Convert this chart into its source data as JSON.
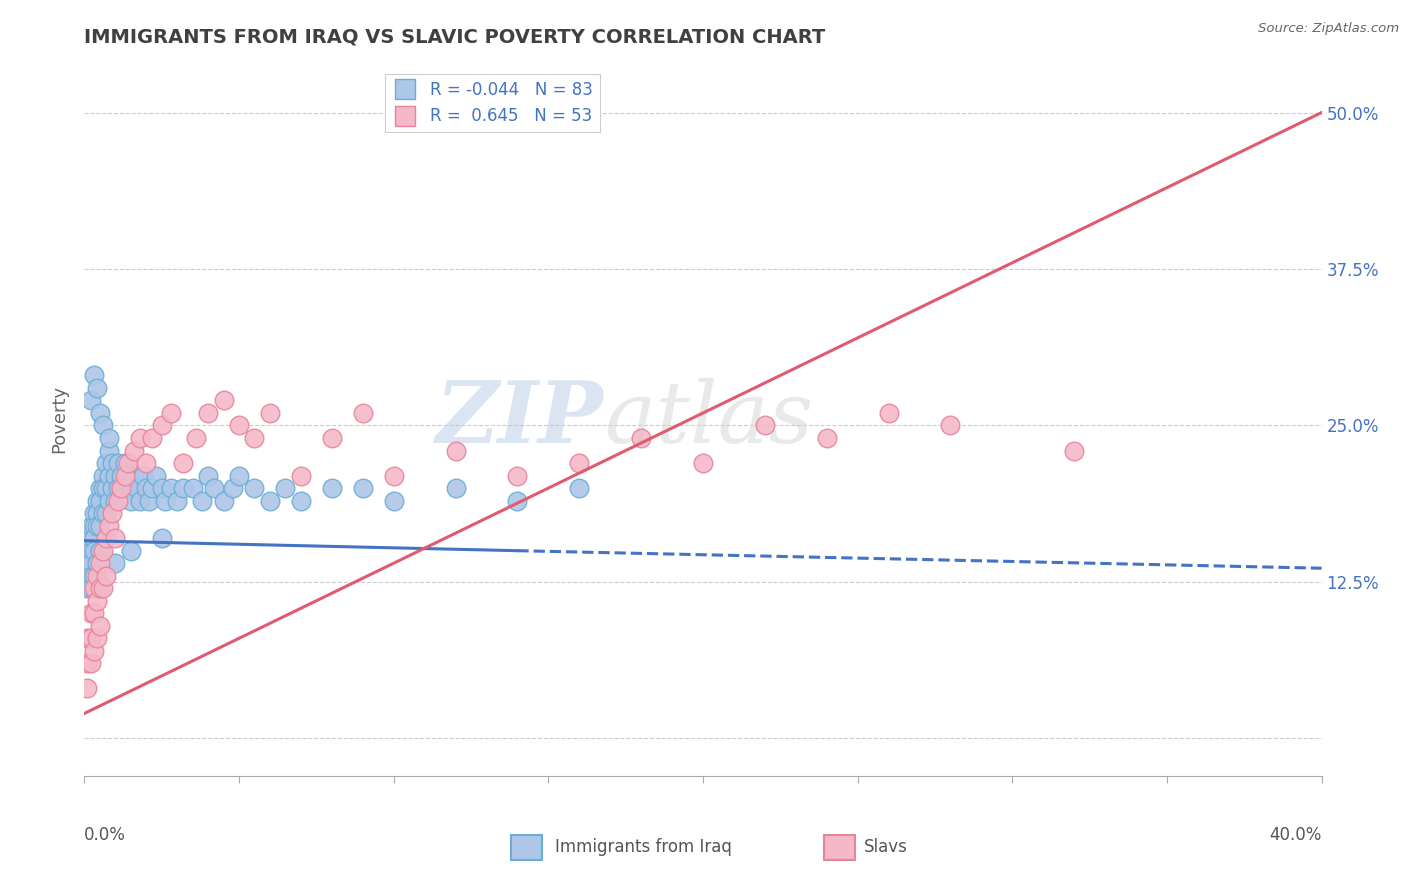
{
  "title": "IMMIGRANTS FROM IRAQ VS SLAVIC POVERTY CORRELATION CHART",
  "source": "Source: ZipAtlas.com",
  "ylabel": "Poverty",
  "ytick_values": [
    0.0,
    0.125,
    0.25,
    0.375,
    0.5
  ],
  "xlim": [
    0.0,
    0.4
  ],
  "ylim": [
    -0.03,
    0.54
  ],
  "legend_entries": [
    {
      "label": "Immigrants from Iraq",
      "color_fill": "#aec6e8",
      "color_edge": "#6aaed6",
      "R": -0.044,
      "N": 83
    },
    {
      "label": "Slavs",
      "color_fill": "#f4b8c8",
      "color_edge": "#e8849a",
      "R": 0.645,
      "N": 53
    }
  ],
  "iraq_line_color": "#4472c4",
  "slavic_line_color": "#e05a70",
  "watermark_zip": "ZIP",
  "watermark_atlas": "atlas",
  "background_color": "#ffffff",
  "grid_color": "#cccccc",
  "title_color": "#404040",
  "iraq_line_solid": {
    "x0": 0.0,
    "x1": 0.14,
    "y0": 0.158,
    "y1": 0.15
  },
  "iraq_line_dashed": {
    "x0": 0.14,
    "x1": 0.4,
    "y0": 0.15,
    "y1": 0.136
  },
  "slavic_line": {
    "x0": 0.0,
    "x1": 0.4,
    "y0": 0.02,
    "y1": 0.5
  },
  "iraq_scatter_x": [
    0.001,
    0.001,
    0.001,
    0.001,
    0.002,
    0.002,
    0.002,
    0.002,
    0.002,
    0.003,
    0.003,
    0.003,
    0.003,
    0.003,
    0.004,
    0.004,
    0.004,
    0.004,
    0.005,
    0.005,
    0.005,
    0.005,
    0.006,
    0.006,
    0.006,
    0.007,
    0.007,
    0.007,
    0.008,
    0.008,
    0.008,
    0.009,
    0.009,
    0.01,
    0.01,
    0.011,
    0.011,
    0.012,
    0.012,
    0.013,
    0.013,
    0.014,
    0.015,
    0.015,
    0.016,
    0.017,
    0.018,
    0.019,
    0.02,
    0.021,
    0.022,
    0.023,
    0.025,
    0.026,
    0.028,
    0.03,
    0.032,
    0.035,
    0.038,
    0.04,
    0.042,
    0.045,
    0.048,
    0.05,
    0.055,
    0.06,
    0.065,
    0.07,
    0.08,
    0.09,
    0.1,
    0.12,
    0.14,
    0.16,
    0.002,
    0.003,
    0.004,
    0.005,
    0.006,
    0.008,
    0.01,
    0.015,
    0.025
  ],
  "iraq_scatter_y": [
    0.14,
    0.16,
    0.13,
    0.12,
    0.17,
    0.15,
    0.14,
    0.13,
    0.12,
    0.18,
    0.17,
    0.16,
    0.15,
    0.13,
    0.19,
    0.18,
    0.17,
    0.14,
    0.2,
    0.19,
    0.17,
    0.15,
    0.21,
    0.2,
    0.18,
    0.22,
    0.2,
    0.18,
    0.23,
    0.21,
    0.19,
    0.22,
    0.2,
    0.21,
    0.19,
    0.22,
    0.2,
    0.21,
    0.2,
    0.22,
    0.2,
    0.21,
    0.2,
    0.19,
    0.21,
    0.2,
    0.19,
    0.21,
    0.2,
    0.19,
    0.2,
    0.21,
    0.2,
    0.19,
    0.2,
    0.19,
    0.2,
    0.2,
    0.19,
    0.21,
    0.2,
    0.19,
    0.2,
    0.21,
    0.2,
    0.19,
    0.2,
    0.19,
    0.2,
    0.2,
    0.19,
    0.2,
    0.19,
    0.2,
    0.27,
    0.29,
    0.28,
    0.26,
    0.25,
    0.24,
    0.14,
    0.15,
    0.16
  ],
  "slavic_scatter_x": [
    0.001,
    0.001,
    0.001,
    0.002,
    0.002,
    0.002,
    0.003,
    0.003,
    0.003,
    0.004,
    0.004,
    0.004,
    0.005,
    0.005,
    0.005,
    0.006,
    0.006,
    0.007,
    0.007,
    0.008,
    0.009,
    0.01,
    0.011,
    0.012,
    0.013,
    0.014,
    0.016,
    0.018,
    0.02,
    0.022,
    0.025,
    0.028,
    0.032,
    0.036,
    0.04,
    0.045,
    0.05,
    0.055,
    0.06,
    0.07,
    0.08,
    0.09,
    0.1,
    0.12,
    0.14,
    0.16,
    0.18,
    0.2,
    0.22,
    0.24,
    0.26,
    0.28,
    0.32
  ],
  "slavic_scatter_y": [
    0.08,
    0.06,
    0.04,
    0.1,
    0.08,
    0.06,
    0.12,
    0.1,
    0.07,
    0.13,
    0.11,
    0.08,
    0.14,
    0.12,
    0.09,
    0.15,
    0.12,
    0.16,
    0.13,
    0.17,
    0.18,
    0.16,
    0.19,
    0.2,
    0.21,
    0.22,
    0.23,
    0.24,
    0.22,
    0.24,
    0.25,
    0.26,
    0.22,
    0.24,
    0.26,
    0.27,
    0.25,
    0.24,
    0.26,
    0.21,
    0.24,
    0.26,
    0.21,
    0.23,
    0.21,
    0.22,
    0.24,
    0.22,
    0.25,
    0.24,
    0.26,
    0.25,
    0.23
  ]
}
